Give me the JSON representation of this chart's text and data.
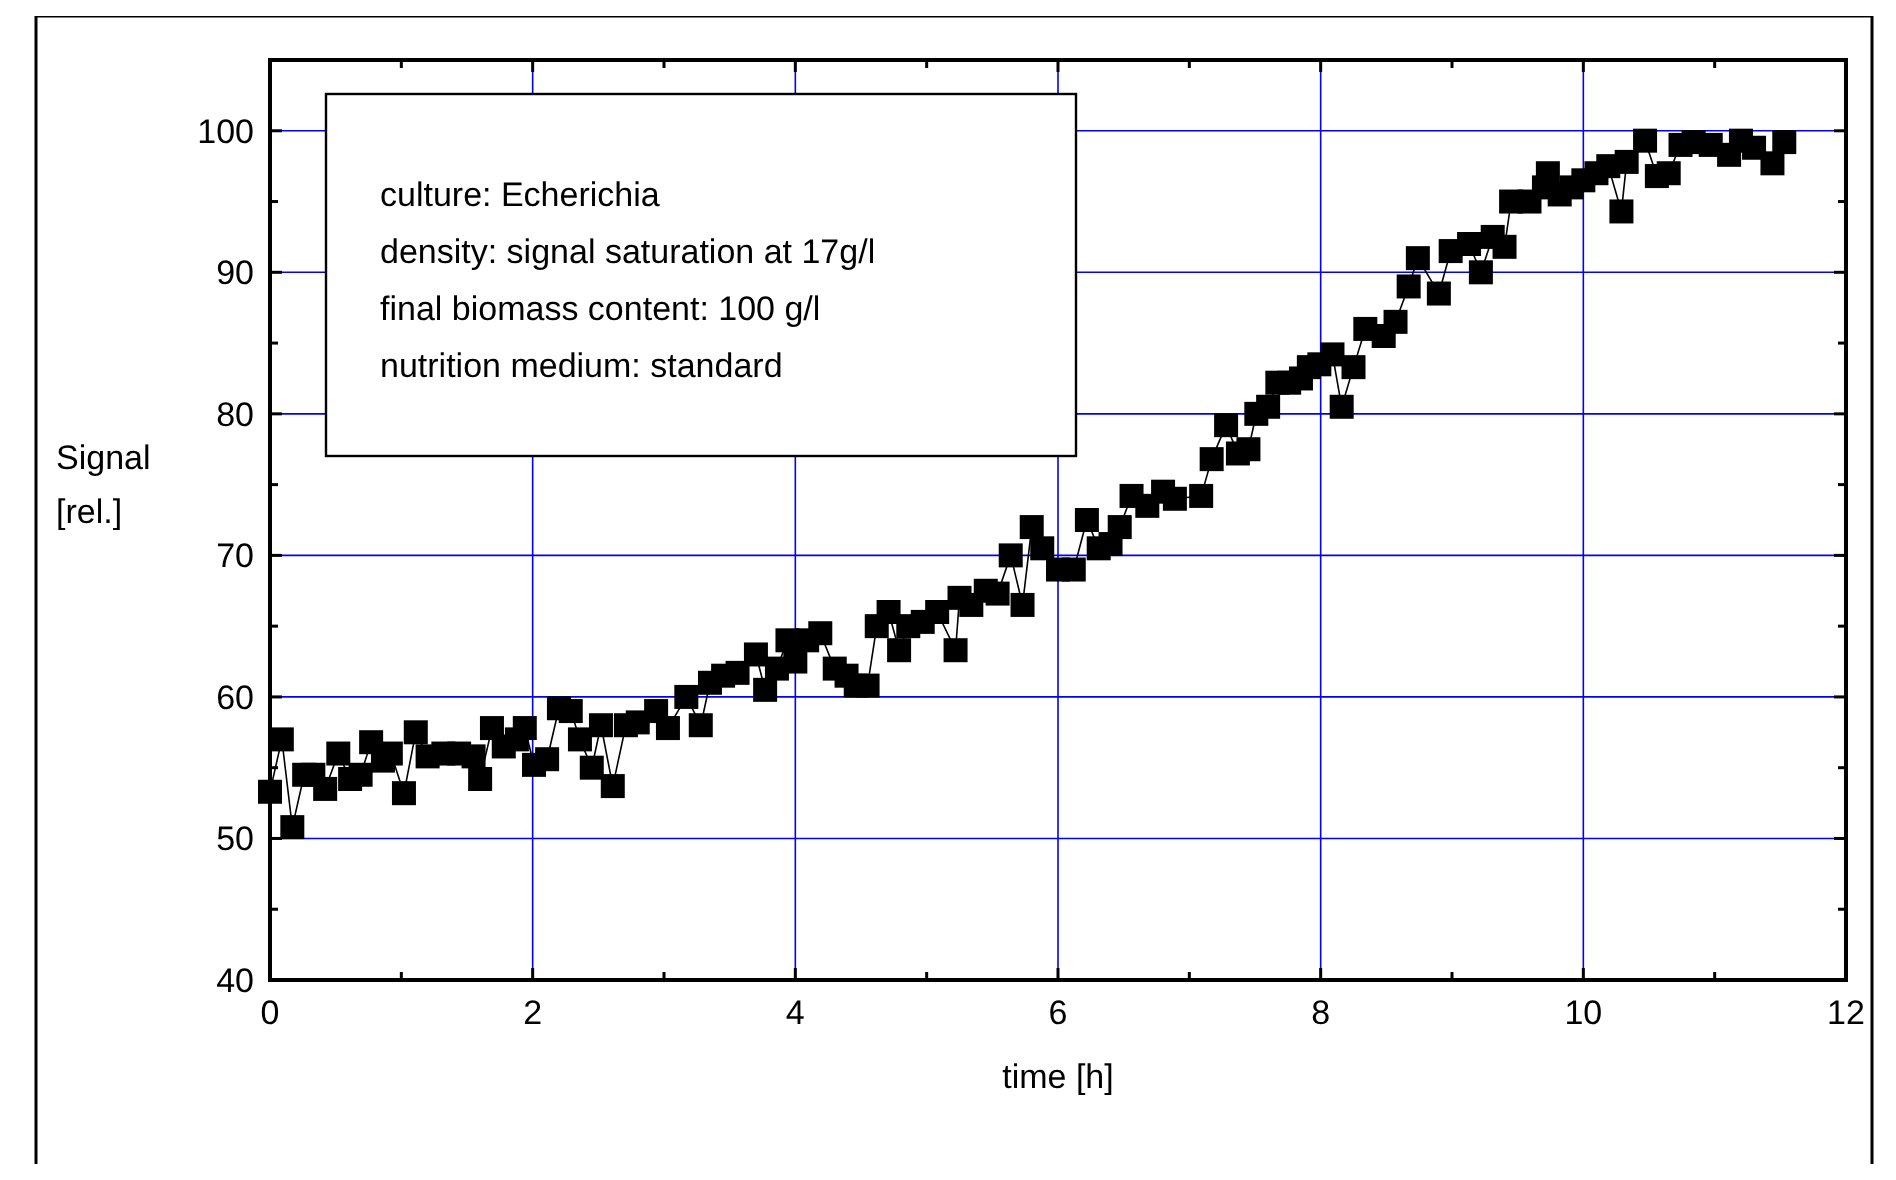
{
  "chart_data": {
    "type": "line",
    "xlabel": "time [h]",
    "ylabel": "Signal [rel.]",
    "annotations": [
      "culture: Echerichia",
      "density: signal saturation at 17g/l",
      "final biomass content: 100 g/l",
      "nutrition medium: standard"
    ],
    "xlim": [
      0,
      12
    ],
    "ylim": [
      40,
      105
    ],
    "xticks": [
      0,
      {
        "value": 1,
        "label": null
      },
      2,
      {
        "value": 3,
        "label": null
      },
      4,
      {
        "value": 5,
        "label": null
      },
      6,
      {
        "value": 7,
        "label": null
      },
      8,
      {
        "value": 9,
        "label": null
      },
      10,
      {
        "value": 11,
        "label": null
      },
      12
    ],
    "yticks": [
      40,
      {
        "value": 45,
        "label": null
      },
      50,
      {
        "value": 55,
        "label": null
      },
      60,
      {
        "value": 65,
        "label": null
      },
      70,
      {
        "value": 75,
        "label": null
      },
      80,
      {
        "value": 85,
        "label": null
      },
      90,
      {
        "value": 95,
        "label": null
      },
      100
    ],
    "grid": true,
    "marker": "square",
    "line_style": "solid",
    "series": [
      {
        "color": "#000000",
        "x": [
          0,
          0.09,
          0.17,
          0.26,
          0.33,
          0.42,
          0.52,
          0.61,
          0.69,
          0.77,
          0.86,
          0.92,
          1.02,
          1.11,
          1.2,
          1.32,
          1.44,
          1.55,
          1.6,
          1.69,
          1.78,
          1.88,
          1.94,
          2.01,
          2.11,
          2.2,
          2.29,
          2.36,
          2.45,
          2.52,
          2.61,
          2.71,
          2.8,
          2.94,
          3.03,
          3.17,
          3.28,
          3.35,
          3.45,
          3.56,
          3.7,
          3.77,
          3.86,
          3.94,
          4.0,
          4.09,
          4.19,
          4.3,
          4.39,
          4.46,
          4.55,
          4.62,
          4.71,
          4.79,
          4.86,
          4.97,
          5.08,
          5.22,
          5.25,
          5.34,
          5.45,
          5.54,
          5.64,
          5.73,
          5.8,
          5.88,
          6.0,
          6.12,
          6.22,
          6.31,
          6.4,
          6.47,
          6.56,
          6.68,
          6.8,
          6.89,
          7.09,
          7.17,
          7.28,
          7.37,
          7.45,
          7.51,
          7.6,
          7.67,
          7.76,
          7.85,
          7.91,
          7.99,
          8.09,
          8.16,
          8.25,
          8.34,
          8.48,
          8.57,
          8.67,
          8.74,
          8.9,
          8.99,
          9.13,
          9.22,
          9.31,
          9.4,
          9.45,
          9.59,
          9.7,
          9.73,
          9.82,
          9.91,
          10.0,
          10.1,
          10.19,
          10.29,
          10.33,
          10.47,
          10.56,
          10.65,
          10.74,
          10.84,
          10.97,
          11.11,
          11.2,
          11.3,
          11.44,
          11.53
        ],
        "values": [
          53.3,
          57,
          50.8,
          54.5,
          54.5,
          53.5,
          56,
          54.2,
          54.5,
          56.8,
          55.5,
          56,
          53.2,
          57.5,
          55.8,
          56,
          56,
          55.8,
          54.2,
          57.8,
          56.5,
          57,
          57.8,
          55.2,
          55.6,
          59.2,
          59,
          57,
          55,
          58,
          53.7,
          58,
          58.2,
          59,
          57.8,
          60,
          58,
          61,
          61.5,
          61.7,
          63,
          60.5,
          62,
          64,
          62.5,
          64,
          64.5,
          62,
          61.5,
          60.8,
          60.8,
          65,
          66,
          63.3,
          65,
          65.3,
          66,
          63.3,
          67,
          66.5,
          67.5,
          67.3,
          70,
          66.5,
          72,
          70.5,
          69,
          69,
          72.5,
          70.5,
          70.8,
          72,
          74.2,
          73.5,
          74.5,
          74,
          74.2,
          76.8,
          79.2,
          77.2,
          77.5,
          80,
          80.5,
          82.2,
          82.2,
          82.5,
          83.3,
          83.5,
          84.2,
          80.5,
          83.3,
          86,
          85.5,
          86.5,
          89,
          91,
          88.5,
          91.5,
          92,
          90,
          92.5,
          91.8,
          95,
          95,
          96,
          97,
          95.5,
          96,
          96.5,
          97,
          97.5,
          94.3,
          97.8,
          99.3,
          96.8,
          97,
          99,
          99.2,
          99,
          98.3,
          99.3,
          98.8,
          97.7,
          99.2
        ]
      }
    ]
  }
}
